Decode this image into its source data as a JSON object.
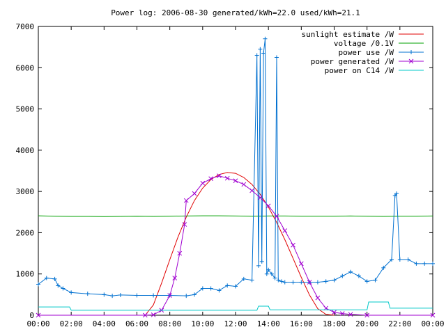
{
  "chart_data": {
    "type": "line",
    "title": "Power log: 2006-08-30 generated/kWh=22.0 used/kWh=21.1",
    "xlabel": "",
    "ylabel": "",
    "xlim": [
      "00:00",
      "24:00"
    ],
    "ylim": [
      0,
      7000
    ],
    "grid": false,
    "legend_position": "top-right",
    "x_tick_labels": [
      "00:00",
      "02:00",
      "04:00",
      "06:00",
      "08:00",
      "10:00",
      "12:00",
      "14:00",
      "16:00",
      "18:00",
      "20:00",
      "22:00",
      "00:00"
    ],
    "y_tick_labels": [
      "0",
      "1000",
      "2000",
      "3000",
      "4000",
      "5000",
      "6000",
      "7000"
    ],
    "y_ticks": [
      0,
      1000,
      2000,
      3000,
      4000,
      5000,
      6000,
      7000
    ],
    "series": [
      {
        "name": "sunlight estimate /W",
        "color": "#e00000",
        "marker": "none",
        "x": [
          6.5,
          7.0,
          7.5,
          8.0,
          8.5,
          9.0,
          9.5,
          10.0,
          10.5,
          11.0,
          11.5,
          12.0,
          12.5,
          13.0,
          13.5,
          14.0,
          14.5,
          15.0,
          15.5,
          16.0,
          16.5,
          17.0,
          17.5,
          18.0
        ],
        "y": [
          0,
          250,
          780,
          1350,
          1900,
          2380,
          2780,
          3080,
          3290,
          3410,
          3460,
          3440,
          3340,
          3170,
          2930,
          2620,
          2250,
          1830,
          1380,
          920,
          490,
          160,
          20,
          0
        ]
      },
      {
        "name": "voltage /0.1V",
        "color": "#00a000",
        "marker": "none",
        "x": [
          0.0,
          1.0,
          2.0,
          3.0,
          4.0,
          5.0,
          6.0,
          7.0,
          8.0,
          9.0,
          10.0,
          11.0,
          12.0,
          13.0,
          14.0,
          15.0,
          16.0,
          17.0,
          18.0,
          19.0,
          20.0,
          21.0,
          22.0,
          23.0,
          24.0
        ],
        "y": [
          2410,
          2400,
          2395,
          2395,
          2390,
          2395,
          2400,
          2395,
          2400,
          2405,
          2410,
          2410,
          2405,
          2400,
          2405,
          2405,
          2400,
          2400,
          2400,
          2405,
          2400,
          2395,
          2400,
          2400,
          2405
        ]
      },
      {
        "name": "power use /W",
        "color": "#0070d0",
        "marker": "plus",
        "x": [
          0.0,
          0.5,
          1.0,
          1.2,
          1.5,
          2.0,
          3.0,
          4.0,
          4.5,
          5.0,
          6.0,
          7.0,
          8.0,
          9.0,
          9.5,
          10.0,
          10.5,
          11.0,
          11.5,
          12.0,
          12.5,
          13.0,
          13.3,
          13.4,
          13.5,
          13.6,
          13.7,
          13.8,
          13.9,
          14.0,
          14.2,
          14.4,
          14.5,
          14.6,
          14.8,
          15.0,
          15.5,
          16.0,
          16.5,
          17.0,
          17.5,
          18.0,
          18.5,
          19.0,
          19.5,
          20.0,
          20.5,
          21.0,
          21.5,
          21.7,
          21.8,
          22.0,
          22.5,
          23.0,
          23.5,
          24.0
        ],
        "y": [
          750,
          900,
          880,
          720,
          650,
          550,
          520,
          500,
          470,
          490,
          480,
          480,
          480,
          470,
          500,
          650,
          650,
          600,
          720,
          700,
          880,
          850,
          6300,
          1200,
          6450,
          1300,
          6350,
          6700,
          1000,
          1100,
          1000,
          900,
          6250,
          850,
          820,
          800,
          800,
          800,
          800,
          800,
          820,
          850,
          950,
          1050,
          950,
          820,
          850,
          1150,
          1350,
          2900,
          2950,
          1350,
          1350,
          1250,
          1250,
          1250
        ]
      },
      {
        "name": "power generated /W",
        "color": "#a000d0",
        "marker": "cross",
        "x": [
          0.0,
          6.5,
          7.0,
          7.5,
          8.0,
          8.3,
          8.6,
          8.9,
          9.0,
          9.5,
          10.0,
          10.5,
          11.0,
          11.5,
          12.0,
          12.5,
          13.0,
          13.5,
          14.0,
          14.5,
          15.0,
          15.5,
          16.0,
          16.5,
          17.0,
          17.5,
          18.0,
          18.5,
          19.0,
          20.0,
          24.0
        ],
        "y": [
          0,
          0,
          10,
          120,
          480,
          900,
          1500,
          2200,
          2780,
          2950,
          3200,
          3310,
          3380,
          3320,
          3260,
          3170,
          3020,
          2850,
          2650,
          2400,
          2050,
          1700,
          1250,
          800,
          420,
          170,
          70,
          40,
          20,
          0,
          0
        ]
      },
      {
        "name": "power on C14 /W",
        "color": "#00c8c8",
        "marker": "none",
        "x": [
          0.0,
          1.9,
          2.0,
          13.3,
          13.4,
          14.0,
          14.1,
          20.0,
          20.1,
          21.3,
          21.4,
          24.0
        ],
        "y": [
          200,
          200,
          120,
          120,
          220,
          220,
          130,
          130,
          320,
          320,
          170,
          170
        ]
      }
    ]
  }
}
